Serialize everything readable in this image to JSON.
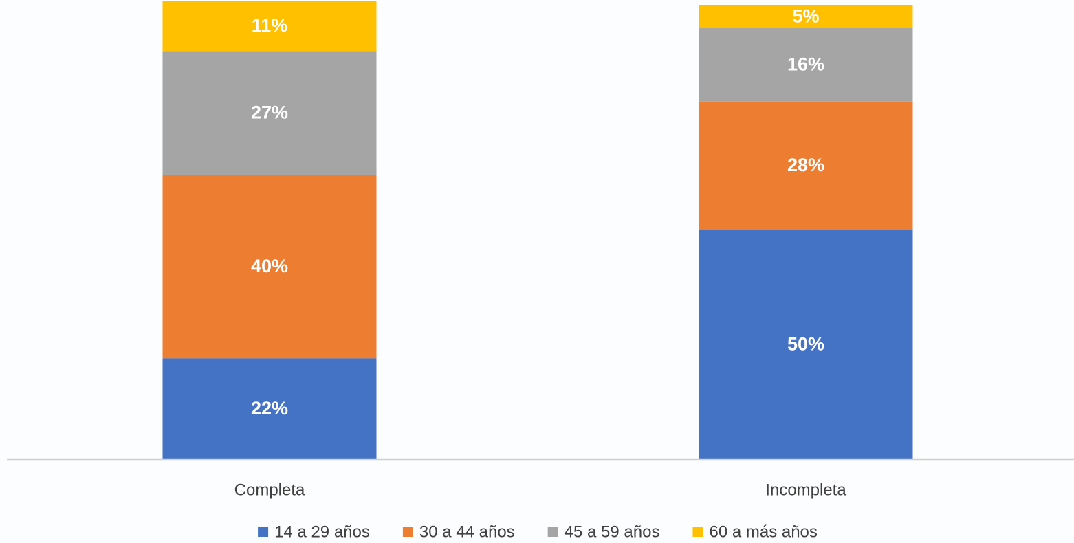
{
  "chart_data": {
    "type": "stacked_bar",
    "categories": [
      "Completa",
      "Incompleta"
    ],
    "series": [
      {
        "name": "14 a 29 años",
        "color": "#4472c4",
        "values": [
          22,
          50
        ],
        "value_labels": [
          "22%",
          "50%"
        ]
      },
      {
        "name": "30 a 44 años",
        "color": "#ed7d31",
        "values": [
          40,
          28
        ],
        "value_labels": [
          "40%",
          "28%"
        ]
      },
      {
        "name": "45 a 59 años",
        "color": "#a5a5a5",
        "values": [
          27,
          16
        ],
        "value_labels": [
          "27%",
          "16%"
        ]
      },
      {
        "name": "60 a más años",
        "color": "#ffc000",
        "values": [
          11,
          5
        ],
        "value_labels": [
          "11%",
          "5%"
        ]
      }
    ],
    "legend": "bottom"
  }
}
